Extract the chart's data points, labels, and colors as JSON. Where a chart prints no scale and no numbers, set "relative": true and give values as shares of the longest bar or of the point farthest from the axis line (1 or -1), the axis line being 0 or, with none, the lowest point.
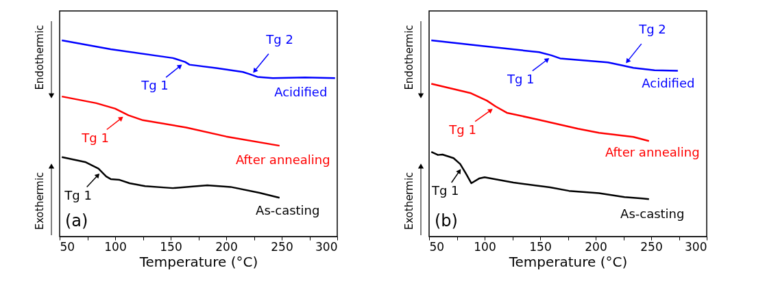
{
  "chart_data": [
    {
      "type": "line",
      "relative": true,
      "xlabel": "Temperature (°C)",
      "xlim": [
        50,
        300
      ],
      "xticks": [
        50,
        {
          "value": 75,
          "label": null
        },
        100,
        {
          "value": 125,
          "label": null
        },
        150,
        {
          "value": 175,
          "label": null
        },
        200,
        {
          "value": 225,
          "label": null
        },
        250,
        {
          "value": 275,
          "label": null
        },
        300
      ],
      "grid": false,
      "legend": "right",
      "marker": "none",
      "line_style": "solid",
      "series": [
        {
          "name": "Acidified",
          "color": "#0000ff",
          "x": [
            52,
            96,
            152,
            163,
            167,
            192,
            215,
            221,
            228,
            242,
            271,
            298
          ],
          "values": [
            1,
            0.955,
            0.91,
            0.89,
            0.876,
            0.858,
            0.839,
            0.828,
            0.814,
            0.808,
            0.811,
            0.808
          ]
        },
        {
          "name": "After annealing",
          "color": "#ff0000",
          "x": [
            52,
            83,
            100,
            112,
            125,
            164,
            200,
            248
          ],
          "values": [
            0.714,
            0.68,
            0.652,
            0.618,
            0.593,
            0.556,
            0.51,
            0.463
          ]
        },
        {
          "name": "As-casting",
          "color": "#000000",
          "x": [
            52,
            73,
            85,
            92,
            96,
            104,
            113,
            127,
            152,
            183,
            204,
            230,
            248
          ],
          "values": [
            0.405,
            0.38,
            0.346,
            0.306,
            0.293,
            0.289,
            0.272,
            0.257,
            0.247,
            0.261,
            0.253,
            0.223,
            0.198
          ]
        }
      ],
      "annotations": [
        "Endothermic",
        "Exothermic",
        "(a)",
        {
          "text": "Tg 1",
          "x": 158,
          "y": 0.867
        },
        {
          "text": "Tg 2",
          "x": 226,
          "y": 0.847
        },
        {
          "text": "Tg 1",
          "x": 105,
          "y": 0.601
        },
        {
          "text": "Tg 1",
          "x": 84,
          "y": 0.31
        }
      ]
    },
    {
      "type": "line",
      "relative": true,
      "xlabel": "Temperature (°C)",
      "xlim": [
        50,
        300
      ],
      "xticks": [
        50,
        {
          "value": 75,
          "label": null
        },
        100,
        {
          "value": 125,
          "label": null
        },
        150,
        {
          "value": 175,
          "label": null
        },
        200,
        {
          "value": 225,
          "label": null
        },
        250,
        {
          "value": 275,
          "label": null
        },
        300
      ],
      "grid": false,
      "legend": "right",
      "marker": "none",
      "line_style": "solid",
      "series": [
        {
          "name": "Acidified",
          "color": "#0000ff",
          "x": [
            52,
            98,
            149,
            160,
            168,
            211,
            222,
            234,
            253,
            274
          ],
          "values": [
            1,
            0.971,
            0.94,
            0.924,
            0.908,
            0.888,
            0.875,
            0.86,
            0.848,
            0.845
          ]
        },
        {
          "name": "After annealing",
          "color": "#ff0000",
          "x": [
            52,
            87,
            102,
            110,
            120,
            149,
            184,
            203,
            234,
            248
          ],
          "values": [
            0.779,
            0.732,
            0.693,
            0.663,
            0.631,
            0.595,
            0.55,
            0.529,
            0.508,
            0.487
          ]
        },
        {
          "name": "As-casting",
          "color": "#000000",
          "x": [
            52,
            58,
            62,
            72,
            78,
            83,
            88,
            95,
            100,
            126,
            159,
            176,
            203,
            226,
            242,
            248
          ],
          "values": [
            0.432,
            0.416,
            0.418,
            0.4,
            0.37,
            0.323,
            0.272,
            0.296,
            0.302,
            0.275,
            0.251,
            0.233,
            0.221,
            0.201,
            0.194,
            0.191
          ]
        }
      ],
      "annotations": [
        "Endothermic",
        "Exothermic",
        "(b)",
        {
          "text": "Tg 1",
          "x": 156,
          "y": 0.9
        },
        {
          "text": "Tg 2",
          "x": 229,
          "y": 0.896
        },
        {
          "text": "Tg 1",
          "x": 105,
          "y": 0.642
        },
        {
          "text": "Tg 1",
          "x": 77,
          "y": 0.331
        }
      ]
    }
  ]
}
